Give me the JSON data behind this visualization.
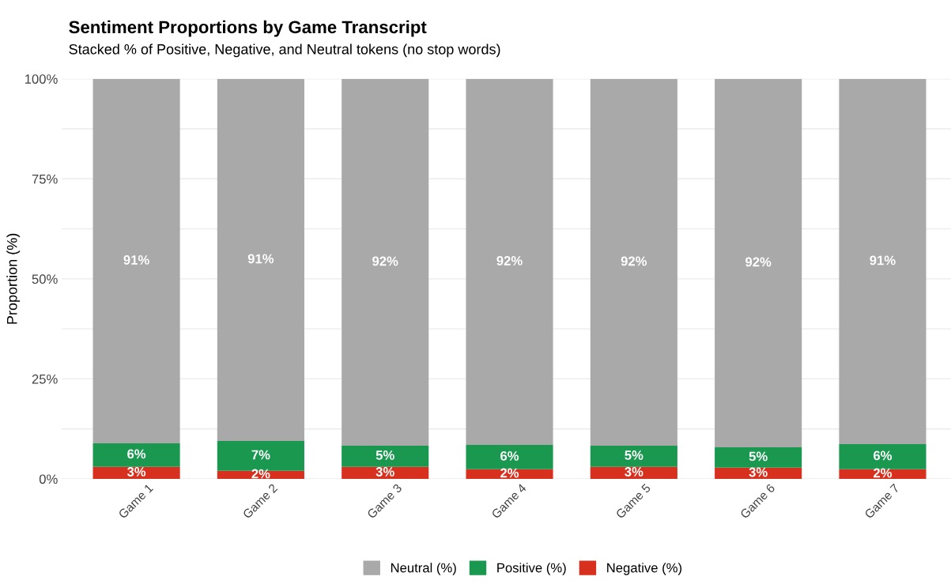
{
  "chart_data": {
    "type": "bar",
    "stacked": true,
    "title": "Sentiment Proportions by Game Transcript",
    "subtitle": "Stacked % of Positive, Negative, and Neutral tokens (no stop words)",
    "ylabel": "Proportion (%)",
    "categories": [
      "Game 1",
      "Game 2",
      "Game 3",
      "Game 4",
      "Game 5",
      "Game 6",
      "Game 7"
    ],
    "series": [
      {
        "name": "Negative (%)",
        "color": "#d7301f",
        "values": [
          3.0,
          2.0,
          3.0,
          2.4,
          3.0,
          2.8,
          2.4
        ],
        "value_labels": [
          "3%",
          "2%",
          "3%",
          "2%",
          "3%",
          "3%",
          "2%"
        ]
      },
      {
        "name": "Positive (%)",
        "color": "#1a9850",
        "values": [
          5.9,
          7.5,
          5.3,
          6.1,
          5.3,
          5.1,
          6.3
        ],
        "value_labels": [
          "6%",
          "7%",
          "5%",
          "6%",
          "5%",
          "5%",
          "6%"
        ]
      },
      {
        "name": "Neutral (%)",
        "color": "#a9a9a9",
        "values": [
          91.1,
          90.5,
          91.7,
          91.5,
          91.7,
          92.1,
          91.3
        ],
        "value_labels": [
          "91%",
          "91%",
          "92%",
          "92%",
          "92%",
          "92%",
          "91%"
        ]
      }
    ],
    "ylim": [
      0,
      100
    ],
    "yticks": [
      {
        "value": 0,
        "label": "0%"
      },
      {
        "value": 12.5,
        "label": null
      },
      {
        "value": 25,
        "label": "25%"
      },
      {
        "value": 37.5,
        "label": null
      },
      {
        "value": 50,
        "label": "50%"
      },
      {
        "value": 62.5,
        "label": null
      },
      {
        "value": 75,
        "label": "75%"
      },
      {
        "value": 87.5,
        "label": null
      },
      {
        "value": 100,
        "label": "100%"
      }
    ],
    "grid": "y",
    "legend": "bottom"
  }
}
